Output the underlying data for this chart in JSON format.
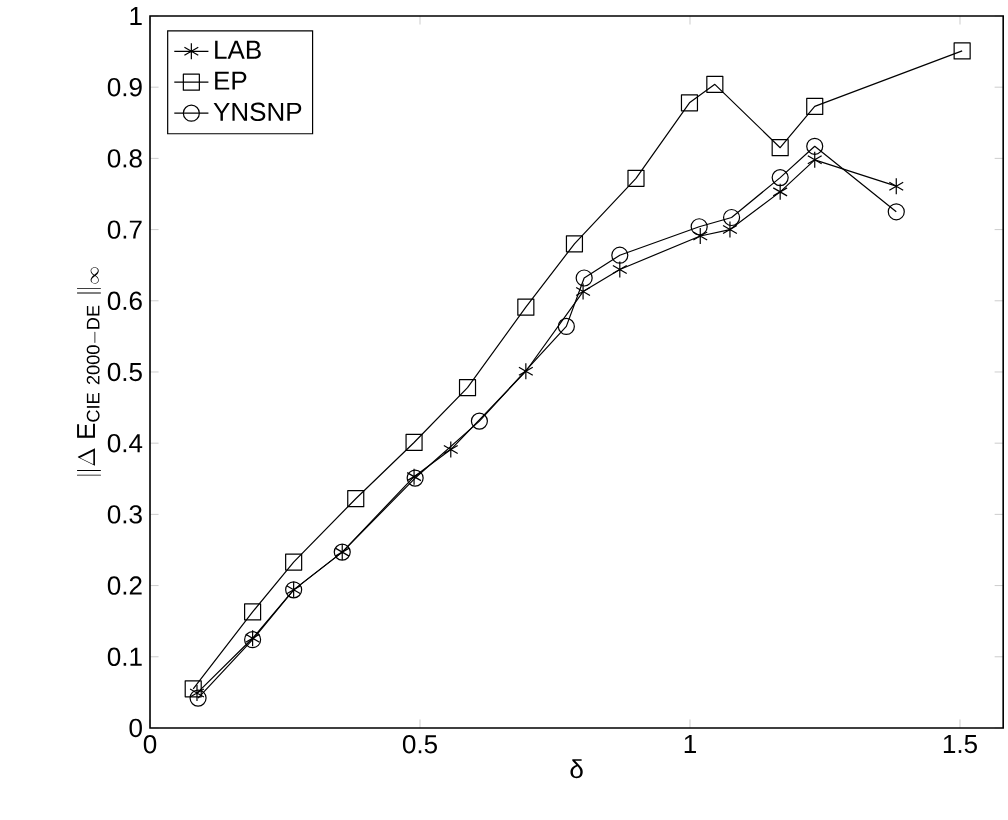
{
  "chart_data": {
    "type": "line",
    "xlabel": "δ",
    "ylabel": "\\|\\Delta\\ \\mathrm{E}_{\\mathrm{CIE\\ 2000{-}DE}}\\ \\|_{\\infty}",
    "xlim": [
      0,
      1.58
    ],
    "xticks": [
      0,
      0.5,
      1,
      1.5
    ],
    "ylim": [
      0,
      1
    ],
    "yticks": [
      0,
      0.1,
      0.2,
      0.3,
      0.4,
      0.5,
      0.6,
      0.7,
      0.8,
      0.9,
      1
    ],
    "legend": "top left",
    "grid": false,
    "line_style": "solid",
    "series": [
      {
        "name": "LAB",
        "color": "#000000",
        "marker": "cross",
        "x": [
          0.087,
          0.19,
          0.266,
          0.356,
          0.489,
          0.557,
          0.696,
          0.802,
          0.87,
          1.019,
          1.074,
          1.167,
          1.231,
          1.382
        ],
        "values": [
          0.049,
          0.126,
          0.194,
          0.247,
          0.353,
          0.391,
          0.501,
          0.613,
          0.644,
          0.691,
          0.7,
          0.753,
          0.798,
          0.761
        ]
      },
      {
        "name": "EP",
        "color": "#000000",
        "marker": "square",
        "x": [
          0.08,
          0.19,
          0.266,
          0.381,
          0.489,
          0.588,
          0.696,
          0.786,
          0.9,
          0.999,
          1.046,
          1.167,
          1.231,
          1.504
        ],
        "values": [
          0.055,
          0.163,
          0.233,
          0.322,
          0.401,
          0.478,
          0.591,
          0.68,
          0.772,
          0.878,
          0.904,
          0.815,
          0.873,
          0.951
        ]
      },
      {
        "name": "YNSNP",
        "color": "#000000",
        "marker": "circle",
        "x": [
          0.089,
          0.19,
          0.266,
          0.356,
          0.491,
          0.61,
          0.771,
          0.804,
          0.87,
          1.017,
          1.077,
          1.167,
          1.231,
          1.382
        ],
        "values": [
          0.042,
          0.124,
          0.194,
          0.247,
          0.351,
          0.431,
          0.564,
          0.632,
          0.664,
          0.704,
          0.717,
          0.773,
          0.817,
          0.725
        ]
      }
    ]
  }
}
